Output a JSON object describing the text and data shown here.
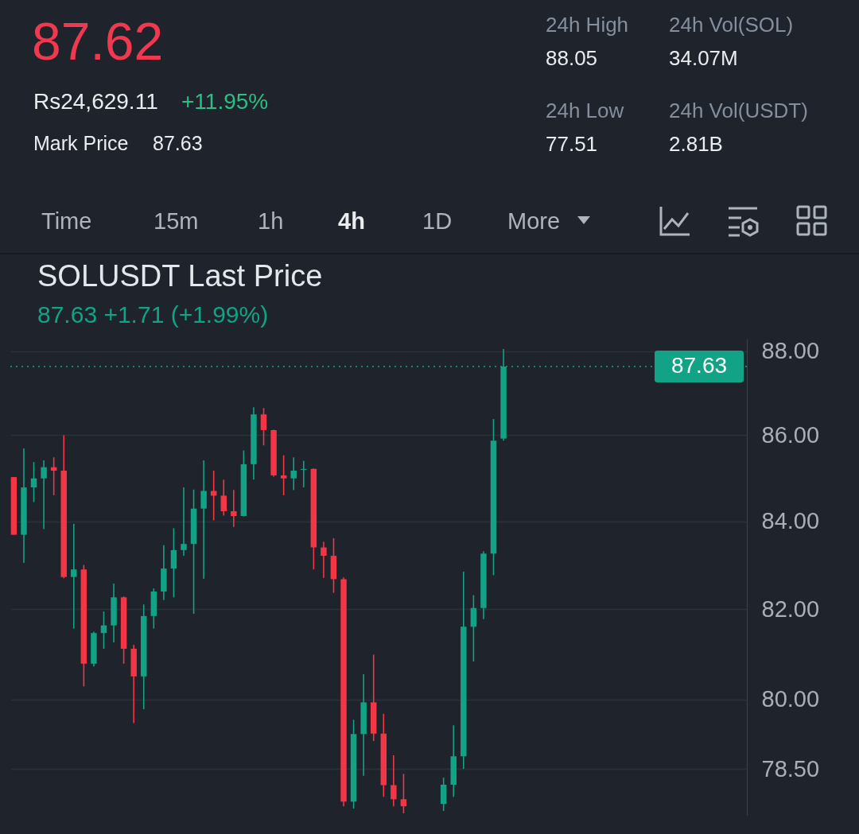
{
  "chart_data": {
    "type": "candlestick",
    "title": "SOLUSDT Last Price",
    "subtitle": "87.63  +1.71 (+1.99%)",
    "annotations": [
      "87.62",
      "Rs24,629.11",
      "+11.95%",
      "Mark Price",
      "87.63",
      "24h High",
      "88.05",
      "24h Vol(SOL)",
      "34.07M",
      "24h Low",
      "77.51",
      "24h Vol(USDT)",
      "2.81B",
      "Time",
      "15m",
      "1h",
      "4h",
      "1D",
      "More"
    ],
    "categories": [
      null,
      null,
      null,
      null,
      null,
      null,
      null,
      null,
      null,
      null,
      null,
      null,
      null,
      null,
      null,
      null,
      null,
      null,
      null,
      null,
      null,
      null,
      null,
      null,
      null,
      null,
      null,
      null,
      null,
      null,
      null,
      null,
      null,
      null,
      null,
      null,
      null,
      null,
      null,
      null,
      null,
      null,
      null,
      null,
      null,
      null,
      null,
      null,
      null,
      null,
      null,
      null,
      null,
      null,
      null,
      null,
      null,
      null,
      null,
      null,
      null,
      null,
      null,
      null,
      null,
      null,
      null,
      null,
      null,
      null,
      null,
      null,
      null,
      null
    ],
    "ohlc": [
      [
        85.02,
        85.02,
        83.69,
        83.69
      ],
      [
        83.69,
        85.69,
        83.05,
        84.78
      ],
      [
        84.78,
        85.37,
        84.44,
        84.99
      ],
      [
        84.99,
        85.41,
        83.82,
        85.25
      ],
      [
        85.25,
        85.48,
        84.6,
        85.17
      ],
      [
        85.17,
        86.0,
        82.7,
        82.73
      ],
      [
        82.73,
        83.94,
        81.57,
        82.9
      ],
      [
        82.9,
        83.0,
        80.29,
        80.79
      ],
      [
        80.79,
        81.5,
        80.73,
        81.47
      ],
      [
        81.47,
        81.95,
        81.12,
        81.64
      ],
      [
        81.64,
        82.58,
        81.26,
        82.27
      ],
      [
        82.27,
        82.29,
        80.79,
        81.12
      ],
      [
        81.12,
        81.21,
        79.49,
        80.51
      ],
      [
        80.51,
        82.11,
        79.79,
        81.85
      ],
      [
        81.85,
        82.47,
        81.57,
        82.4
      ],
      [
        82.4,
        83.45,
        82.21,
        82.92
      ],
      [
        82.92,
        83.84,
        82.27,
        83.34
      ],
      [
        83.34,
        84.78,
        83.21,
        83.48
      ],
      [
        83.48,
        84.73,
        81.9,
        84.29
      ],
      [
        84.29,
        85.41,
        82.69,
        84.7
      ],
      [
        84.7,
        85.17,
        84.02,
        84.59
      ],
      [
        84.59,
        84.96,
        84.13,
        84.23
      ],
      [
        84.23,
        84.72,
        83.87,
        84.12
      ],
      [
        84.12,
        85.64,
        84.11,
        85.32
      ],
      [
        85.32,
        86.66,
        84.96,
        86.49
      ],
      [
        86.49,
        86.64,
        85.76,
        86.12
      ],
      [
        86.12,
        86.13,
        85.03,
        85.06
      ],
      [
        85.06,
        85.53,
        84.6,
        84.99
      ],
      [
        84.99,
        85.48,
        84.72,
        85.17
      ],
      [
        85.19,
        85.4,
        84.78,
        85.21
      ],
      [
        85.21,
        85.22,
        82.9,
        83.4
      ],
      [
        83.4,
        83.53,
        82.71,
        83.21
      ],
      [
        83.21,
        83.61,
        82.37,
        82.68
      ],
      [
        82.68,
        82.72,
        77.7,
        77.8
      ],
      [
        77.8,
        79.56,
        77.65,
        79.25
      ],
      [
        79.25,
        80.56,
        78.35,
        79.94
      ],
      [
        79.94,
        80.99,
        79.1,
        79.26
      ],
      [
        79.26,
        79.69,
        77.9,
        78.15
      ],
      [
        78.15,
        78.79,
        77.7,
        77.85
      ],
      [
        77.85,
        78.39,
        77.55,
        77.7
      ],
      null,
      null,
      null,
      [
        77.75,
        78.31,
        77.6,
        78.16
      ],
      [
        78.16,
        79.44,
        77.9,
        78.77
      ],
      [
        78.77,
        82.85,
        78.5,
        81.61
      ],
      [
        81.61,
        82.32,
        80.84,
        82.03
      ],
      [
        82.03,
        83.31,
        81.78,
        83.26
      ],
      [
        83.26,
        86.38,
        82.77,
        85.87
      ],
      [
        85.92,
        88.05,
        85.87,
        87.63
      ],
      null,
      null,
      null,
      null,
      null,
      null,
      null,
      null,
      null,
      null,
      null,
      null,
      null,
      null,
      null,
      null,
      null,
      null,
      null,
      null,
      null,
      null,
      null,
      null
    ],
    "colors": [
      "#f23645",
      "#12a285",
      "#12a285",
      "#12a285",
      "#f23645",
      "#f23645",
      "#12a285",
      "#f23645",
      "#12a285",
      "#12a285",
      "#12a285",
      "#f23645",
      "#f23645",
      "#12a285",
      "#12a285",
      "#12a285",
      "#12a285",
      "#12a285",
      "#12a285",
      "#12a285",
      "#f23645",
      "#f23645",
      "#f23645",
      "#12a285",
      "#12a285",
      "#f23645",
      "#f23645",
      "#f23645",
      "#12a285",
      "#12a285",
      "#f23645",
      "#f23645",
      "#f23645",
      "#f23645",
      "#12a285",
      "#12a285",
      "#f23645",
      "#f23645",
      "#f23645",
      "#f23645",
      null,
      null,
      null,
      "#12a285",
      "#12a285",
      "#12a285",
      "#12a285",
      "#12a285",
      "#12a285",
      "#12a285",
      null,
      null,
      null,
      null,
      null,
      null,
      null,
      null,
      null,
      null,
      null,
      null,
      null,
      null,
      null,
      null,
      null,
      null,
      null,
      null,
      null,
      null,
      null,
      null
    ],
    "ylim": [
      77.5,
      88.3
    ],
    "yticks": [
      {
        "value": 78.5,
        "label": "78.50"
      },
      {
        "value": 80,
        "label": "80.00"
      },
      {
        "value": 82,
        "label": "82.00"
      },
      {
        "value": 84,
        "label": "84.00"
      },
      {
        "value": 86,
        "label": "86.00"
      },
      {
        "value": 88,
        "label": "88.00"
      }
    ],
    "log": "y",
    "grid": "y",
    "tick_labels": "y",
    "ref_lines": [
      {
        "axis": "y",
        "value": 87.63,
        "label": "87.63",
        "color": "#12a285",
        "line_style": "dotted"
      }
    ]
  }
}
